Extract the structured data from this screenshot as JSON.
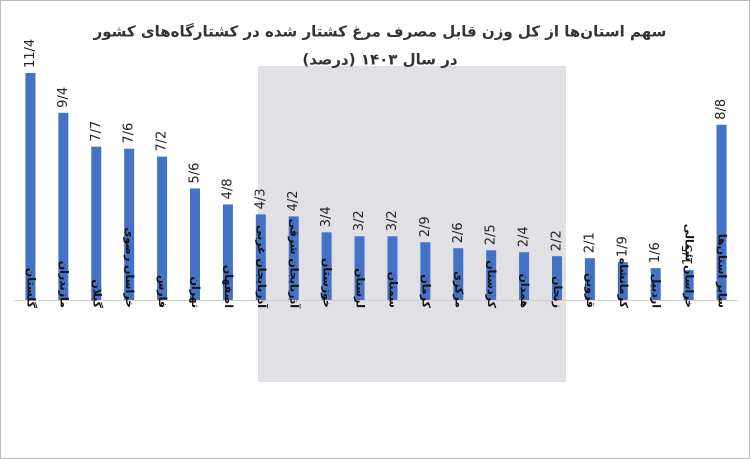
{
  "chart_data": {
    "type": "bar",
    "title": "سهم استان‌ها از کل وزن قابل مصرف مرغ کشتار شده در کشتارگاه‌های کشور",
    "subtitle": "در سال ۱۴۰۳ (درصد)",
    "categories": [
      "گلستان",
      "مازندران",
      "گیلان",
      "خراسان رضوی",
      "فارس",
      "تهران",
      "اصفهان",
      "آذربایجان غربی",
      "آذربایجان شرقی",
      "خوزستان",
      "لرستان",
      "سمنان",
      "کرمان",
      "مرکزی",
      "کردستان",
      "همدان",
      "زنجان",
      "قزوین",
      "کرمانشاه",
      "اردبیل",
      "خراسان شمالی",
      "سایر استان‌ها"
    ],
    "values": [
      11.4,
      9.4,
      7.7,
      7.6,
      7.2,
      5.6,
      4.8,
      4.3,
      4.2,
      3.4,
      3.2,
      3.2,
      2.9,
      2.6,
      2.5,
      2.4,
      2.2,
      2.1,
      1.9,
      1.6,
      1.5,
      8.8
    ],
    "value_labels": [
      "11/4",
      "9/4",
      "7/7",
      "7/6",
      "7/2",
      "5/6",
      "4/8",
      "4/3",
      "4/2",
      "3/4",
      "3/2",
      "3/2",
      "2/9",
      "2/6",
      "2/5",
      "2/4",
      "2/2",
      "2/1",
      "1/9",
      "1/6",
      "1/5",
      "8/8"
    ],
    "color": "#4472c4"
  }
}
